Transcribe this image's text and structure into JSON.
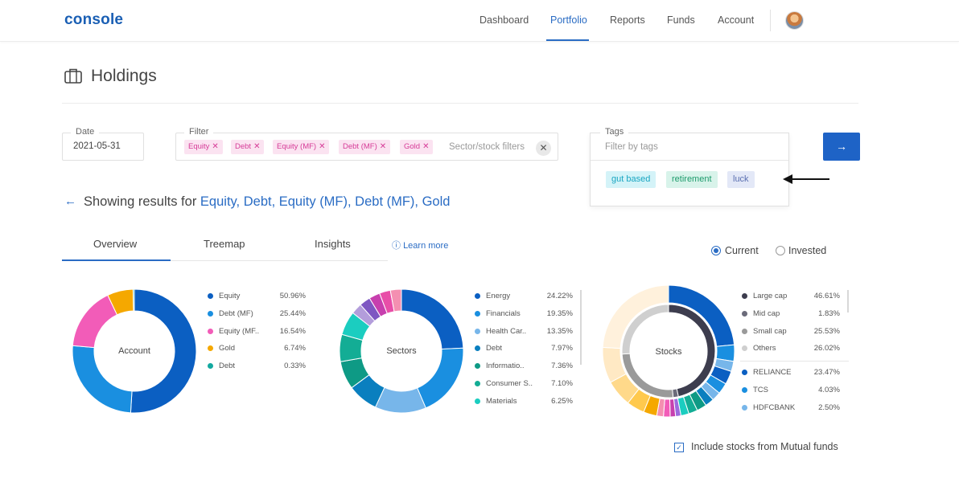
{
  "app": {
    "logo": "console"
  },
  "nav": {
    "items": [
      "Dashboard",
      "Portfolio",
      "Reports",
      "Funds",
      "Account"
    ],
    "active": "Portfolio"
  },
  "page": {
    "title": "Holdings"
  },
  "filters": {
    "date": {
      "legend": "Date",
      "value": "2021-05-31"
    },
    "filter": {
      "legend": "Filter",
      "chips": [
        "Equity",
        "Debt",
        "Equity (MF)",
        "Debt (MF)",
        "Gold"
      ],
      "placeholder": "Sector/stock filters"
    },
    "tags": {
      "legend": "Tags",
      "placeholder": "Filter by tags",
      "options": [
        "gut based",
        "retirement",
        "luck"
      ]
    },
    "go_icon": "arrow-right-icon"
  },
  "results": {
    "prefix": "Showing results for",
    "selection": "Equity, Debt, Equity (MF), Debt (MF), Gold"
  },
  "tabs": {
    "items": [
      "Overview",
      "Treemap",
      "Insights"
    ],
    "active": "Overview",
    "learn_more": "Learn more"
  },
  "value_toggle": {
    "options": [
      "Current",
      "Invested"
    ],
    "selected": "Current"
  },
  "include_mf": {
    "label": "Include stocks from Mutual funds",
    "checked": true
  },
  "chart_data": [
    {
      "type": "pie",
      "title": "Account",
      "series": [
        {
          "name": "Equity",
          "value": 50.96,
          "label": "50.96%",
          "color": "#0b5fc2"
        },
        {
          "name": "Debt (MF)",
          "value": 25.44,
          "label": "25.44%",
          "color": "#1a8fe0"
        },
        {
          "name": "Equity (MF..",
          "value": 16.54,
          "label": "16.54%",
          "color": "#f25cb8"
        },
        {
          "name": "Gold",
          "value": 6.74,
          "label": "6.74%",
          "color": "#f5a800"
        },
        {
          "name": "Debt",
          "value": 0.33,
          "label": "0.33%",
          "color": "#13a9a0"
        }
      ]
    },
    {
      "type": "pie",
      "title": "Sectors",
      "series": [
        {
          "name": "Energy",
          "value": 24.22,
          "label": "24.22%",
          "color": "#0b5fc2"
        },
        {
          "name": "Financials",
          "value": 19.35,
          "label": "19.35%",
          "color": "#1a8fe0"
        },
        {
          "name": "Health Car..",
          "value": 13.35,
          "label": "13.35%",
          "color": "#77b6ea"
        },
        {
          "name": "Debt",
          "value": 7.97,
          "label": "7.97%",
          "color": "#0a7fbf"
        },
        {
          "name": "Informatio..",
          "value": 7.36,
          "label": "7.36%",
          "color": "#0e9a85"
        },
        {
          "name": "Consumer S..",
          "value": 7.1,
          "label": "7.10%",
          "color": "#13ad95"
        },
        {
          "name": "Materials",
          "value": 6.25,
          "label": "6.25%",
          "color": "#1bcdc0"
        }
      ],
      "unlisted_segment_colors": [
        "#b39ddb",
        "#7e57c2",
        "#c73fae",
        "#e84ea8",
        "#f48fb1"
      ]
    },
    {
      "type": "pie",
      "title": "Stocks",
      "inner_series": [
        {
          "name": "Large cap",
          "value": 46.61,
          "label": "46.61%",
          "color": "#3d3d4e"
        },
        {
          "name": "Mid cap",
          "value": 1.83,
          "label": "1.83%",
          "color": "#6b6b7a"
        },
        {
          "name": "Small cap",
          "value": 25.53,
          "label": "25.53%",
          "color": "#9a9a9a"
        },
        {
          "name": "Others",
          "value": 26.02,
          "label": "26.02%",
          "color": "#cfcfcf"
        }
      ],
      "outer_series": [
        {
          "name": "RELIANCE",
          "value": 23.47,
          "label": "23.47%",
          "color": "#0b5fc2"
        },
        {
          "name": "TCS",
          "value": 4.03,
          "label": "4.03%",
          "color": "#1a8fe0"
        },
        {
          "name": "HDFCBANK",
          "value": 2.5,
          "label": "2.50%",
          "color": "#77b6ea"
        }
      ]
    }
  ]
}
